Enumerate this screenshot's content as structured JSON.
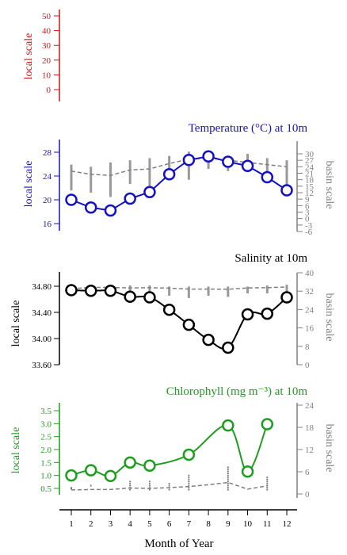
{
  "colors": {
    "red": "#d0151b",
    "blue": "#1512c6",
    "black": "#000000",
    "green": "#1e9e1e",
    "gray": "#808080",
    "lightgray": "#999999"
  },
  "xaxis": {
    "label": "Month of Year",
    "ticks": [
      "1",
      "2",
      "3",
      "4",
      "5",
      "6",
      "7",
      "8",
      "9",
      "10",
      "11",
      "12"
    ]
  },
  "chart_data": [
    {
      "type": "line",
      "title": "",
      "ylabel": "local scale",
      "color": "#d0151b",
      "yticks": [
        "50",
        "40",
        "30",
        "20",
        "10",
        "0"
      ],
      "ylim": [
        -5,
        55
      ],
      "series": []
    },
    {
      "type": "line",
      "title": "Temperature (°C) at 10m",
      "color": "#1512c6",
      "ylabel": "local scale",
      "y2label": "basin scale",
      "yticks": [
        "28",
        "24",
        "20",
        "16"
      ],
      "ylim": [
        13.5,
        29.5
      ],
      "y2ticks": [
        "30",
        "27",
        "24",
        "21",
        "18",
        "15",
        "12",
        "9",
        "6",
        "3",
        "0",
        "-3",
        "-6"
      ],
      "y2lim": [
        -6,
        30
      ],
      "x": [
        1,
        2,
        3,
        4,
        5,
        6,
        7,
        8,
        9,
        10,
        11,
        12
      ],
      "local": [
        20.0,
        18.7,
        18.2,
        20.2,
        21.3,
        24.3,
        26.7,
        27.3,
        26.4,
        25.7,
        23.8,
        21.6
      ],
      "basin": [
        19.3,
        18.6,
        18.0,
        20.3,
        21.0,
        23.8,
        25.4,
        26.3,
        26.3,
        25.4,
        24.4,
        21.8
      ],
      "basin_range": [
        [
          13,
          25
        ],
        [
          12,
          24
        ],
        [
          10,
          26
        ],
        [
          16,
          27
        ],
        [
          15,
          28
        ],
        [
          18,
          29
        ],
        [
          18,
          31
        ],
        [
          23,
          30
        ],
        [
          22,
          28
        ],
        [
          23,
          30
        ],
        [
          21,
          28
        ],
        [
          14,
          27
        ]
      ]
    },
    {
      "type": "line",
      "title": "Salinity at 10m",
      "color": "#000000",
      "ylabel": "local scale",
      "y2label": "basin scale",
      "yticks": [
        "34.80",
        "34.40",
        "34.00",
        "33.60"
      ],
      "ylim": [
        33.6,
        34.96
      ],
      "y2ticks": [
        "40",
        "32",
        "24",
        "16",
        "8",
        "0"
      ],
      "y2lim": [
        0,
        40
      ],
      "x": [
        1,
        2,
        3,
        4,
        5,
        6,
        7,
        8,
        9,
        10,
        11,
        12
      ],
      "local": [
        34.74,
        34.73,
        34.73,
        34.64,
        34.63,
        34.44,
        34.21,
        33.98,
        33.86,
        34.37,
        34.38,
        34.63
      ],
      "basin": [
        33.1,
        33.6,
        33.6,
        33.4,
        33.5,
        33.3,
        32.9,
        32.9,
        32.8,
        33.4,
        33.5,
        33.8
      ],
      "basin_range": [
        [
          31,
          34.5
        ],
        [
          31,
          34.5
        ],
        [
          31,
          34.5
        ],
        [
          31,
          34.5
        ],
        [
          31,
          34.5
        ],
        [
          30,
          34
        ],
        [
          29,
          34
        ],
        [
          30,
          34
        ],
        [
          29.5,
          34
        ],
        [
          31,
          34
        ],
        [
          31,
          34.5
        ],
        [
          31,
          34.8
        ]
      ]
    },
    {
      "type": "line",
      "title": "Chlorophyll (mg m⁻³) at 10m",
      "color": "#1e9e1e",
      "ylabel": "local scale",
      "y2label": "basin scale",
      "yticks": [
        "3.5",
        "3.0",
        "2.5",
        "2.0",
        "1.5",
        "1.0",
        "0.5"
      ],
      "ylim": [
        0.25,
        3.75
      ],
      "y2ticks": [
        "24",
        "18",
        "12",
        "6",
        "0"
      ],
      "y2lim": [
        0,
        24
      ],
      "x": [
        1,
        2,
        3,
        4,
        5,
        6,
        7,
        8,
        9,
        10,
        11,
        12
      ],
      "local_x": [
        1,
        2,
        3,
        4,
        5,
        7,
        9,
        10,
        11
      ],
      "local": [
        1.0,
        1.2,
        0.98,
        1.5,
        1.38,
        1.8,
        2.93,
        1.15,
        2.98
      ],
      "basin": [
        1.1,
        1.2,
        1.2,
        1.6,
        1.5,
        1.7,
        2.0,
        2.5,
        3.1,
        1.3,
        2.2
      ],
      "basin_x": [
        1,
        2,
        3,
        4,
        5,
        6,
        7,
        8,
        9,
        10,
        11
      ],
      "basin_dots": [
        [
          1.5,
          2
        ],
        [
          3
        ],
        [],
        [
          1,
          2,
          3,
          4,
          5
        ],
        [
          1,
          2,
          3,
          4,
          5
        ],
        [
          1,
          2,
          3,
          4
        ],
        [
          1,
          2,
          3,
          4,
          5,
          6,
          7,
          8
        ],
        [],
        [
          1,
          2,
          3,
          4,
          5,
          6,
          7,
          8,
          9,
          10,
          11,
          12
        ],
        [],
        [
          1,
          2,
          3,
          4,
          5,
          6,
          7
        ]
      ]
    }
  ]
}
